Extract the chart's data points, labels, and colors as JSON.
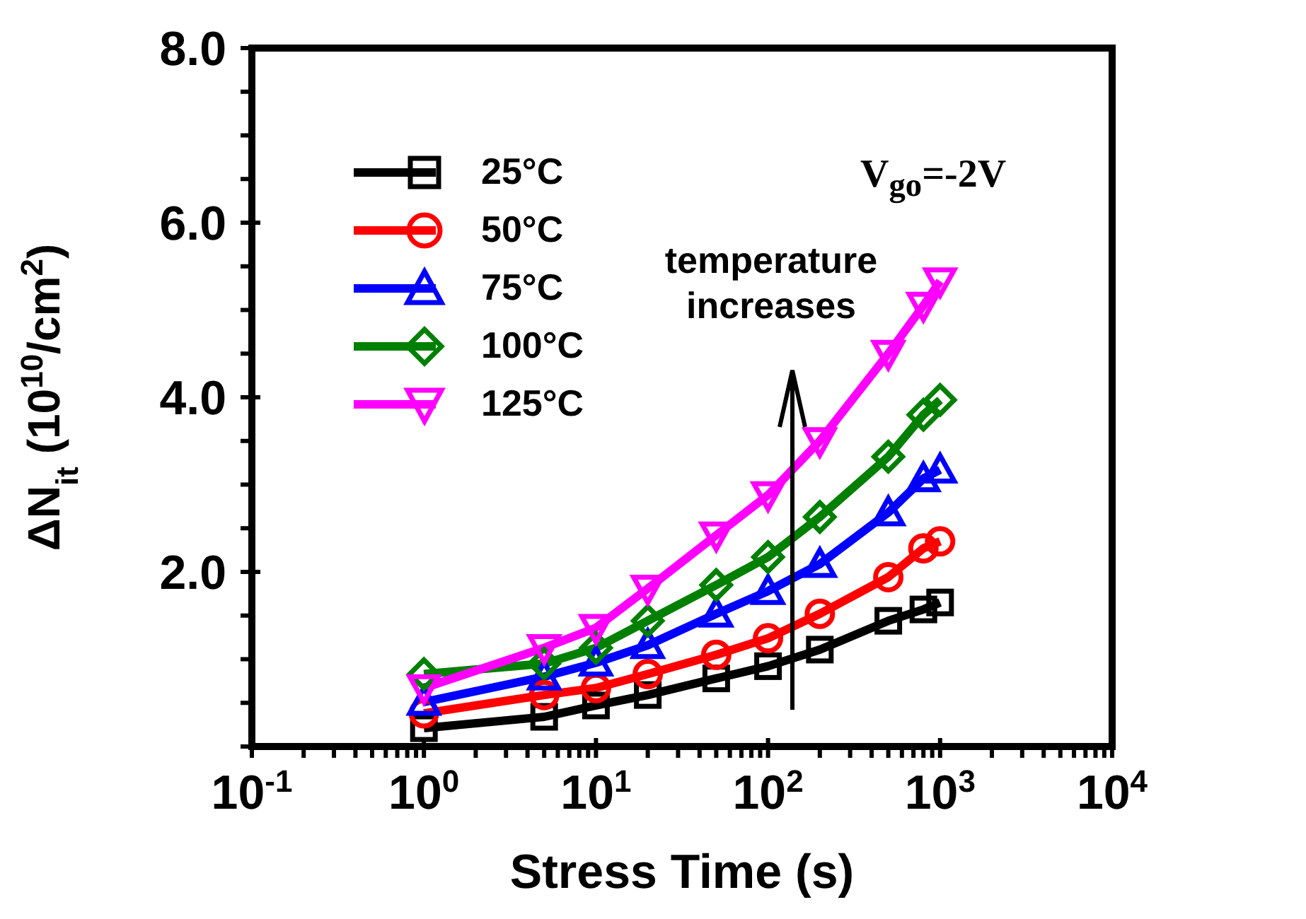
{
  "chart_data": {
    "type": "line",
    "xlabel": "Stress Time (s)",
    "ylabel": "ΔN$_{it}$ (10$^{10}$/cm$^{2}$)",
    "x": [
      1,
      5,
      10,
      20,
      50,
      100,
      200,
      500,
      800,
      1000
    ],
    "series": [
      {
        "name": "25°C",
        "color": "#000000",
        "marker": "square",
        "values": [
          0.21,
          0.34,
          0.47,
          0.59,
          0.78,
          0.92,
          1.11,
          1.44,
          1.57,
          1.65
        ]
      },
      {
        "name": "50°C",
        "color": "#ff0000",
        "marker": "circle",
        "values": [
          0.38,
          0.59,
          0.67,
          0.83,
          1.05,
          1.24,
          1.52,
          1.94,
          2.27,
          2.35
        ]
      },
      {
        "name": "75°C",
        "color": "#0000ff",
        "marker": "triangle",
        "values": [
          0.51,
          0.8,
          0.96,
          1.16,
          1.52,
          1.78,
          2.09,
          2.68,
          3.07,
          3.17
        ]
      },
      {
        "name": "100°C",
        "color": "#008000",
        "marker": "diamond",
        "values": [
          0.83,
          0.95,
          1.13,
          1.44,
          1.85,
          2.17,
          2.63,
          3.32,
          3.8,
          3.97
        ]
      },
      {
        "name": "125°C",
        "color": "#ff00ff",
        "marker": "triangle-down",
        "values": [
          0.67,
          1.13,
          1.36,
          1.81,
          2.42,
          2.88,
          3.5,
          4.5,
          5.05,
          5.33
        ]
      }
    ],
    "log": "x",
    "xlim": [
      0.1,
      10000
    ],
    "xticks": [
      {
        "value": 0.1,
        "label": "10$^{-1}$"
      },
      {
        "value": 0.2,
        "label": null
      },
      {
        "value": 0.3,
        "label": null
      },
      {
        "value": 0.4,
        "label": null
      },
      {
        "value": 0.5,
        "label": null
      },
      {
        "value": 0.6,
        "label": null
      },
      {
        "value": 0.7,
        "label": null
      },
      {
        "value": 0.8,
        "label": null
      },
      {
        "value": 0.9,
        "label": null
      },
      {
        "value": 1,
        "label": "10$^{0}$"
      },
      {
        "value": 2,
        "label": null
      },
      {
        "value": 3,
        "label": null
      },
      {
        "value": 4,
        "label": null
      },
      {
        "value": 5,
        "label": null
      },
      {
        "value": 6,
        "label": null
      },
      {
        "value": 7,
        "label": null
      },
      {
        "value": 8,
        "label": null
      },
      {
        "value": 9,
        "label": null
      },
      {
        "value": 10,
        "label": "10$^{1}$"
      },
      {
        "value": 20,
        "label": null
      },
      {
        "value": 30,
        "label": null
      },
      {
        "value": 40,
        "label": null
      },
      {
        "value": 50,
        "label": null
      },
      {
        "value": 60,
        "label": null
      },
      {
        "value": 70,
        "label": null
      },
      {
        "value": 80,
        "label": null
      },
      {
        "value": 90,
        "label": null
      },
      {
        "value": 100,
        "label": "10$^{2}$"
      },
      {
        "value": 200,
        "label": null
      },
      {
        "value": 300,
        "label": null
      },
      {
        "value": 400,
        "label": null
      },
      {
        "value": 500,
        "label": null
      },
      {
        "value": 600,
        "label": null
      },
      {
        "value": 700,
        "label": null
      },
      {
        "value": 800,
        "label": null
      },
      {
        "value": 900,
        "label": null
      },
      {
        "value": 1000,
        "label": "10$^{3}$"
      },
      {
        "value": 2000,
        "label": null
      },
      {
        "value": 3000,
        "label": null
      },
      {
        "value": 4000,
        "label": null
      },
      {
        "value": 5000,
        "label": null
      },
      {
        "value": 6000,
        "label": null
      },
      {
        "value": 7000,
        "label": null
      },
      {
        "value": 8000,
        "label": null
      },
      {
        "value": 9000,
        "label": null
      },
      {
        "value": 10000,
        "label": "10$^{4}$"
      }
    ],
    "ylim": [
      0,
      8
    ],
    "yticks": [
      {
        "value": 0,
        "label": null
      },
      {
        "value": 0.5,
        "label": null
      },
      {
        "value": 1,
        "label": null
      },
      {
        "value": 1.5,
        "label": null
      },
      {
        "value": 2,
        "label": "2.0"
      },
      {
        "value": 2.5,
        "label": null
      },
      {
        "value": 3,
        "label": null
      },
      {
        "value": 3.5,
        "label": null
      },
      {
        "value": 4,
        "label": "4.0"
      },
      {
        "value": 4.5,
        "label": null
      },
      {
        "value": 5,
        "label": null
      },
      {
        "value": 5.5,
        "label": null
      },
      {
        "value": 6,
        "label": "6.0"
      },
      {
        "value": 6.5,
        "label": null
      },
      {
        "value": 7,
        "label": null
      },
      {
        "value": 7.5,
        "label": null
      },
      {
        "value": 8,
        "label": "8.0"
      }
    ],
    "grid": false,
    "legend": "top left",
    "line_style": "solid",
    "annotations": [
      "V$_{go}$=-2V",
      "temperature increases"
    ]
  }
}
